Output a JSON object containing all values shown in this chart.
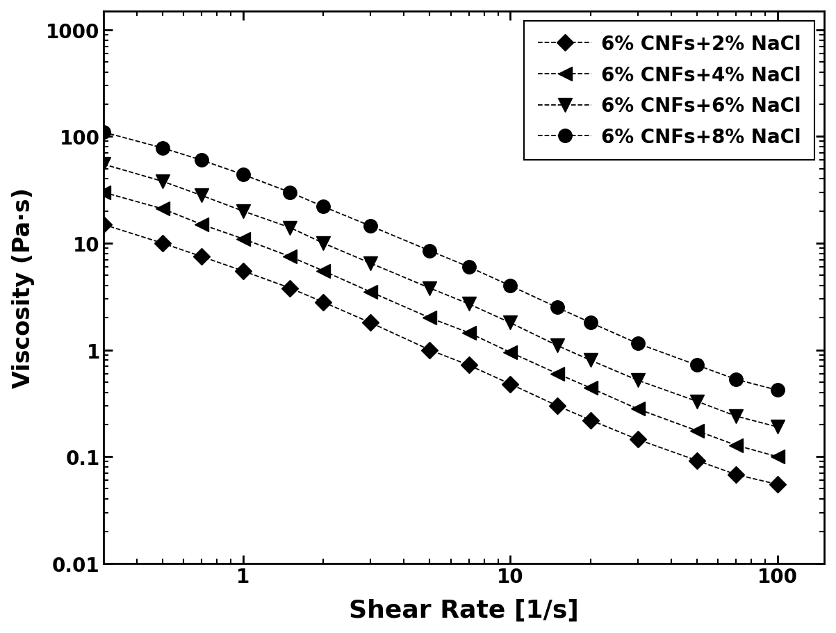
{
  "title": "",
  "xlabel": "Shear Rate [1/s]",
  "ylabel": "Viscosity (Pa·s)",
  "xlim": [
    0.3,
    150
  ],
  "ylim": [
    0.01,
    1500
  ],
  "background_color": "#ffffff",
  "series": [
    {
      "label": "6% CNFs+2% NaCl",
      "marker": "D",
      "color": "#000000",
      "x": [
        0.3,
        0.5,
        0.7,
        1.0,
        1.5,
        2.0,
        3.0,
        5.0,
        7.0,
        10.0,
        15.0,
        20.0,
        30.0,
        50.0,
        70.0,
        100.0
      ],
      "y": [
        15.0,
        10.0,
        7.5,
        5.5,
        3.8,
        2.8,
        1.8,
        1.0,
        0.72,
        0.48,
        0.3,
        0.22,
        0.145,
        0.092,
        0.068,
        0.055
      ]
    },
    {
      "label": "6% CNFs+4% NaCl",
      "marker": "<",
      "color": "#000000",
      "x": [
        0.3,
        0.5,
        0.7,
        1.0,
        1.5,
        2.0,
        3.0,
        5.0,
        7.0,
        10.0,
        15.0,
        20.0,
        30.0,
        50.0,
        70.0,
        100.0
      ],
      "y": [
        30.0,
        21.0,
        15.0,
        11.0,
        7.5,
        5.5,
        3.5,
        2.0,
        1.45,
        0.95,
        0.6,
        0.44,
        0.28,
        0.175,
        0.128,
        0.1
      ]
    },
    {
      "label": "6% CNFs+6% NaCl",
      "marker": "v",
      "color": "#000000",
      "x": [
        0.3,
        0.5,
        0.7,
        1.0,
        1.5,
        2.0,
        3.0,
        5.0,
        7.0,
        10.0,
        15.0,
        20.0,
        30.0,
        50.0,
        70.0,
        100.0
      ],
      "y": [
        55.0,
        38.0,
        28.0,
        20.0,
        14.0,
        10.0,
        6.5,
        3.8,
        2.7,
        1.8,
        1.1,
        0.8,
        0.52,
        0.33,
        0.24,
        0.19
      ]
    },
    {
      "label": "6% CNFs+8% NaCl",
      "marker": "o",
      "color": "#000000",
      "x": [
        0.3,
        0.5,
        0.7,
        1.0,
        1.5,
        2.0,
        3.0,
        5.0,
        7.0,
        10.0,
        15.0,
        20.0,
        30.0,
        50.0,
        70.0,
        100.0
      ],
      "y": [
        110.0,
        78.0,
        60.0,
        44.0,
        30.0,
        22.0,
        14.5,
        8.5,
        6.0,
        4.0,
        2.5,
        1.8,
        1.15,
        0.72,
        0.53,
        0.42
      ]
    }
  ],
  "yticks": [
    0.01,
    0.1,
    1,
    10,
    100,
    1000
  ],
  "ytick_labels": [
    "0.01",
    "0.1",
    "1",
    "10",
    "100",
    "1000"
  ],
  "xticks": [
    1,
    10,
    100
  ],
  "xtick_labels": [
    "1",
    "10",
    "100"
  ]
}
